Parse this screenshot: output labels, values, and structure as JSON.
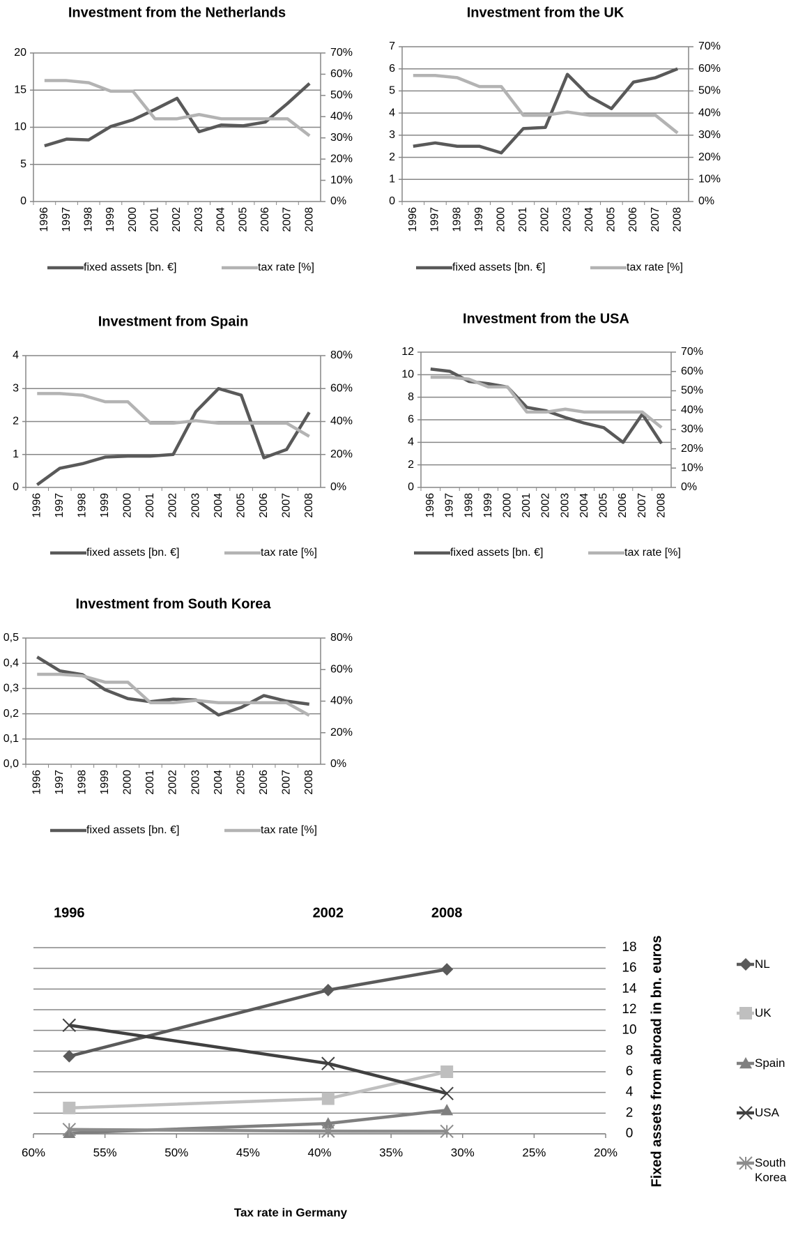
{
  "chart_data": [
    {
      "type": "line",
      "title": "Investment from the Netherlands",
      "categories": [
        "1996",
        "1997",
        "1998",
        "1999",
        "2000",
        "2001",
        "2002",
        "2003",
        "2004",
        "2005",
        "2006",
        "2007",
        "2008"
      ],
      "series": [
        {
          "name": "fixed assets [bn. €]",
          "color": "#595959",
          "values": [
            7.5,
            8.4,
            8.3,
            10.1,
            11.0,
            12.4,
            13.9,
            9.4,
            10.3,
            10.2,
            10.7,
            13.2,
            15.9
          ]
        },
        {
          "name": "tax rate [%]",
          "color": "#b3b3b3",
          "axis": "y2",
          "values": [
            57,
            57,
            56,
            52,
            52,
            39,
            39,
            41,
            39,
            39,
            39,
            39,
            31
          ]
        }
      ],
      "ylim": [
        0,
        20
      ],
      "yticks": [
        0,
        5,
        10,
        15,
        20
      ],
      "y2lim": [
        0,
        70
      ],
      "y2ticks": [
        {
          "value": 0,
          "label": "0%"
        },
        {
          "value": 10,
          "label": "10%"
        },
        {
          "value": 20,
          "label": "20%"
        },
        {
          "value": 30,
          "label": "30%"
        },
        {
          "value": 40,
          "label": "40%"
        },
        {
          "value": 50,
          "label": "50%"
        },
        {
          "value": 60,
          "label": "60%"
        },
        {
          "value": 70,
          "label": "70%"
        }
      ],
      "grid": true
    },
    {
      "type": "line",
      "title": "Investment from the UK",
      "categories": [
        "1996",
        "1997",
        "1998",
        "1999",
        "2000",
        "2001",
        "2002",
        "2003",
        "2004",
        "2005",
        "2006",
        "2007",
        "2008"
      ],
      "series": [
        {
          "name": "fixed assets [bn. €]",
          "color": "#595959",
          "values": [
            2.5,
            2.65,
            2.5,
            2.5,
            2.2,
            3.3,
            3.35,
            5.75,
            4.75,
            4.2,
            5.4,
            5.6,
            6.0
          ]
        },
        {
          "name": "tax rate [%]",
          "color": "#b3b3b3",
          "axis": "y2",
          "values": [
            57,
            57,
            56,
            52,
            52,
            39,
            39,
            40.5,
            39,
            39,
            39,
            39,
            31
          ]
        }
      ],
      "ylim": [
        0,
        7
      ],
      "yticks": [
        0,
        1,
        2,
        3,
        4,
        5,
        6,
        7
      ],
      "y2lim": [
        0,
        70
      ],
      "y2ticks": [
        {
          "value": 0,
          "label": "0%"
        },
        {
          "value": 10,
          "label": "10%"
        },
        {
          "value": 20,
          "label": "20%"
        },
        {
          "value": 30,
          "label": "30%"
        },
        {
          "value": 40,
          "label": "40%"
        },
        {
          "value": 50,
          "label": "50%"
        },
        {
          "value": 60,
          "label": "60%"
        },
        {
          "value": 70,
          "label": "70%"
        }
      ],
      "grid": true
    },
    {
      "type": "line",
      "title": "Investment from Spain",
      "categories": [
        "1996",
        "1997",
        "1998",
        "1999",
        "2000",
        "2001",
        "2002",
        "2003",
        "2004",
        "2005",
        "2006",
        "2007",
        "2008"
      ],
      "series": [
        {
          "name": "fixed assets [bn. €]",
          "color": "#595959",
          "values": [
            0.08,
            0.58,
            0.72,
            0.92,
            0.95,
            0.95,
            1.0,
            2.3,
            3.0,
            2.8,
            0.9,
            1.15,
            2.28
          ]
        },
        {
          "name": "tax rate [%]",
          "color": "#b3b3b3",
          "axis": "y2",
          "values": [
            57,
            57,
            56,
            52,
            52,
            39,
            39,
            40.5,
            39,
            39,
            39,
            39,
            31
          ]
        }
      ],
      "ylim": [
        0,
        4
      ],
      "yticks": [
        0,
        1,
        2,
        3,
        4
      ],
      "y2lim": [
        0,
        80
      ],
      "y2ticks": [
        {
          "value": 0,
          "label": "0%"
        },
        {
          "value": 20,
          "label": "20%"
        },
        {
          "value": 40,
          "label": "40%"
        },
        {
          "value": 60,
          "label": "60%"
        },
        {
          "value": 80,
          "label": "80%"
        }
      ],
      "grid": true
    },
    {
      "type": "line",
      "title": "Investment from the USA",
      "categories": [
        "1996",
        "1997",
        "1998",
        "1999",
        "2000",
        "2001",
        "2002",
        "2003",
        "2004",
        "2005",
        "2006",
        "2007",
        "2008"
      ],
      "series": [
        {
          "name": "fixed assets [bn. €]",
          "color": "#595959",
          "values": [
            10.5,
            10.3,
            9.4,
            9.2,
            8.9,
            7.1,
            6.8,
            6.2,
            5.7,
            5.3,
            4.0,
            6.5,
            3.9
          ]
        },
        {
          "name": "tax rate [%]",
          "color": "#b3b3b3",
          "axis": "y2",
          "values": [
            57,
            57,
            56,
            52,
            52,
            39,
            39,
            40.5,
            39,
            39,
            39,
            39,
            31
          ]
        }
      ],
      "ylim": [
        0,
        12
      ],
      "yticks": [
        0,
        2,
        4,
        6,
        8,
        10,
        12
      ],
      "y2lim": [
        0,
        70
      ],
      "y2ticks": [
        {
          "value": 0,
          "label": "0%"
        },
        {
          "value": 10,
          "label": "10%"
        },
        {
          "value": 20,
          "label": "20%"
        },
        {
          "value": 30,
          "label": "30%"
        },
        {
          "value": 40,
          "label": "40%"
        },
        {
          "value": 50,
          "label": "50%"
        },
        {
          "value": 60,
          "label": "60%"
        },
        {
          "value": 70,
          "label": "70%"
        }
      ],
      "grid": true
    },
    {
      "type": "line",
      "title": "Investment from South Korea",
      "categories": [
        "1996",
        "1997",
        "1998",
        "1999",
        "2000",
        "2001",
        "2002",
        "2003",
        "2004",
        "2005",
        "2006",
        "2007",
        "2008"
      ],
      "series": [
        {
          "name": "fixed assets [bn. €]",
          "color": "#595959",
          "values": [
            0.425,
            0.37,
            0.355,
            0.295,
            0.26,
            0.248,
            0.258,
            0.255,
            0.195,
            0.225,
            0.272,
            0.25,
            0.238
          ]
        },
        {
          "name": "tax rate [%]",
          "color": "#b3b3b3",
          "axis": "y2",
          "values": [
            57,
            57,
            56,
            52,
            52,
            39,
            39,
            40.5,
            39,
            39,
            39,
            39,
            31
          ]
        }
      ],
      "ylim": [
        0,
        0.5
      ],
      "yticks": [
        {
          "value": 0,
          "label": "0,0"
        },
        {
          "value": 0.1,
          "label": "0,1"
        },
        {
          "value": 0.2,
          "label": "0,2"
        },
        {
          "value": 0.3,
          "label": "0,3"
        },
        {
          "value": 0.4,
          "label": "0,4"
        },
        {
          "value": 0.5,
          "label": "0,5"
        }
      ],
      "y2lim": [
        0,
        80
      ],
      "y2ticks": [
        {
          "value": 0,
          "label": "0%"
        },
        {
          "value": 20,
          "label": "20%"
        },
        {
          "value": 40,
          "label": "40%"
        },
        {
          "value": 60,
          "label": "60%"
        },
        {
          "value": 80,
          "label": "80%"
        }
      ],
      "grid": true
    },
    {
      "type": "scatter",
      "annotations": [
        "1996",
        "2002",
        "2008"
      ],
      "x_label": "Tax rate in Germany",
      "y_label": "Fixed assets from abroad in bn. euros",
      "x": [
        57.5,
        39.4,
        31.1
      ],
      "series": [
        {
          "name": "NL",
          "color": "#5a5a5a",
          "marker": "diamond",
          "values": [
            7.5,
            13.9,
            15.9
          ]
        },
        {
          "name": "UK",
          "color": "#bfbfbf",
          "marker": "square",
          "values": [
            2.5,
            3.4,
            6.0
          ]
        },
        {
          "name": "Spain",
          "color": "#7f7f7f",
          "marker": "triangle",
          "values": [
            0.08,
            1.0,
            2.28
          ]
        },
        {
          "name": "USA",
          "color": "#404040",
          "marker": "x",
          "values": [
            10.5,
            6.8,
            3.9
          ]
        },
        {
          "name": "South Korea",
          "color": "#8c8c8c",
          "marker": "star",
          "values": [
            0.42,
            0.26,
            0.24
          ]
        }
      ],
      "xlim": [
        60,
        20
      ],
      "xticks": [
        {
          "value": 60,
          "label": "60%"
        },
        {
          "value": 55,
          "label": "55%"
        },
        {
          "value": 50,
          "label": "50%"
        },
        {
          "value": 45,
          "label": "45%"
        },
        {
          "value": 40,
          "label": "40%"
        },
        {
          "value": 35,
          "label": "35%"
        },
        {
          "value": 30,
          "label": "30%"
        },
        {
          "value": 25,
          "label": "25%"
        },
        {
          "value": 20,
          "label": "20%"
        }
      ],
      "ylim": [
        0,
        18
      ],
      "yticks": [
        0,
        2,
        4,
        6,
        8,
        10,
        12,
        14,
        16,
        18
      ],
      "grid": true
    }
  ]
}
